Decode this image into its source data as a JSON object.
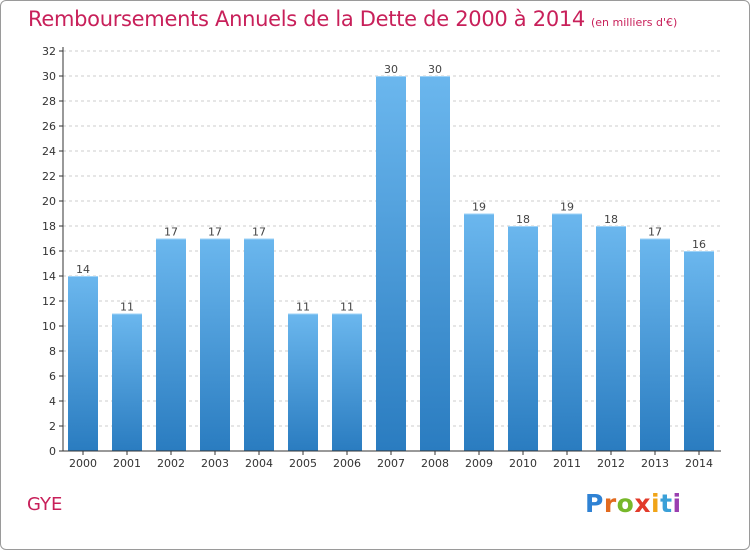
{
  "title": "Remboursements Annuels de la Dette de 2000 à 2014",
  "subtitle": "(en milliers d'€)",
  "commune": "GYE",
  "logo_text": "Proxiti",
  "chart_data": {
    "type": "bar",
    "title": "Remboursements Annuels de la Dette de 2000 à 2014",
    "unit": "(en milliers d'€)",
    "xlabel": "",
    "ylabel": "",
    "categories": [
      "2000",
      "2001",
      "2002",
      "2003",
      "2004",
      "2005",
      "2006",
      "2007",
      "2008",
      "2009",
      "2010",
      "2011",
      "2012",
      "2013",
      "2014"
    ],
    "values": [
      14,
      11,
      17,
      17,
      17,
      11,
      11,
      30,
      30,
      19,
      18,
      19,
      18,
      17,
      16
    ],
    "ylim": [
      0,
      32
    ],
    "yticks": [
      0,
      2,
      4,
      6,
      8,
      10,
      12,
      14,
      16,
      18,
      20,
      22,
      24,
      26,
      28,
      30,
      32
    ],
    "grid": true,
    "colors": {
      "bar_top": "#6bb7ee",
      "bar_bottom": "#2a7cc0",
      "accent": "#c8205a"
    }
  }
}
